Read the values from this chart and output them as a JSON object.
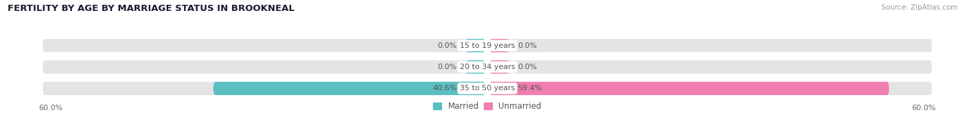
{
  "title": "FERTILITY BY AGE BY MARRIAGE STATUS IN BROOKNEAL",
  "source": "Source: ZipAtlas.com",
  "categories": [
    "15 to 19 years",
    "20 to 34 years",
    "35 to 50 years"
  ],
  "married_values": [
    0.0,
    0.0,
    40.6
  ],
  "unmarried_values": [
    0.0,
    0.0,
    59.4
  ],
  "max_val": 60.0,
  "married_color": "#5bbfc2",
  "unmarried_color": "#f07eb0",
  "bar_bg_color": "#e4e4e4",
  "label_color": "#555555",
  "title_color": "#1a1a2e",
  "source_color": "#999999",
  "axis_label_color": "#666666",
  "bar_height": 0.62,
  "fig_bg_color": "#ffffff"
}
